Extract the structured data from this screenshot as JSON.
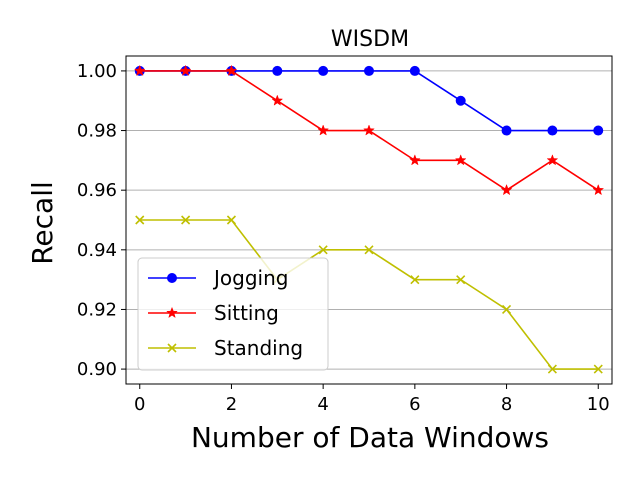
{
  "chart_data": {
    "type": "line",
    "title": "WISDM",
    "xlabel": "Number of Data Windows",
    "ylabel": "Recall",
    "x": [
      0,
      1,
      2,
      3,
      4,
      5,
      6,
      7,
      8,
      9,
      10
    ],
    "xlim": [
      -0.3,
      10.3
    ],
    "ylim": [
      0.895,
      1.005
    ],
    "xticks": [
      0,
      2,
      4,
      6,
      8,
      10
    ],
    "yticks": [
      0.9,
      0.92,
      0.94,
      0.96,
      0.98,
      1.0
    ],
    "ytick_labels": [
      "0.90",
      "0.92",
      "0.94",
      "0.96",
      "0.98",
      "1.00"
    ],
    "grid": "horizontal",
    "legend_position": "lower-left",
    "series": [
      {
        "name": "Jogging",
        "color": "#0000ff",
        "marker": "circle",
        "values": [
          1.0,
          1.0,
          1.0,
          1.0,
          1.0,
          1.0,
          1.0,
          0.99,
          0.98,
          0.98,
          0.98
        ]
      },
      {
        "name": "Sitting",
        "color": "#ff0000",
        "marker": "star",
        "values": [
          1.0,
          1.0,
          1.0,
          0.99,
          0.98,
          0.98,
          0.97,
          0.97,
          0.96,
          0.97,
          0.96
        ]
      },
      {
        "name": "Standing",
        "color": "#bfbf00",
        "marker": "x",
        "values": [
          0.95,
          0.95,
          0.95,
          0.93,
          0.94,
          0.94,
          0.93,
          0.93,
          0.92,
          0.9,
          0.9
        ]
      }
    ]
  }
}
